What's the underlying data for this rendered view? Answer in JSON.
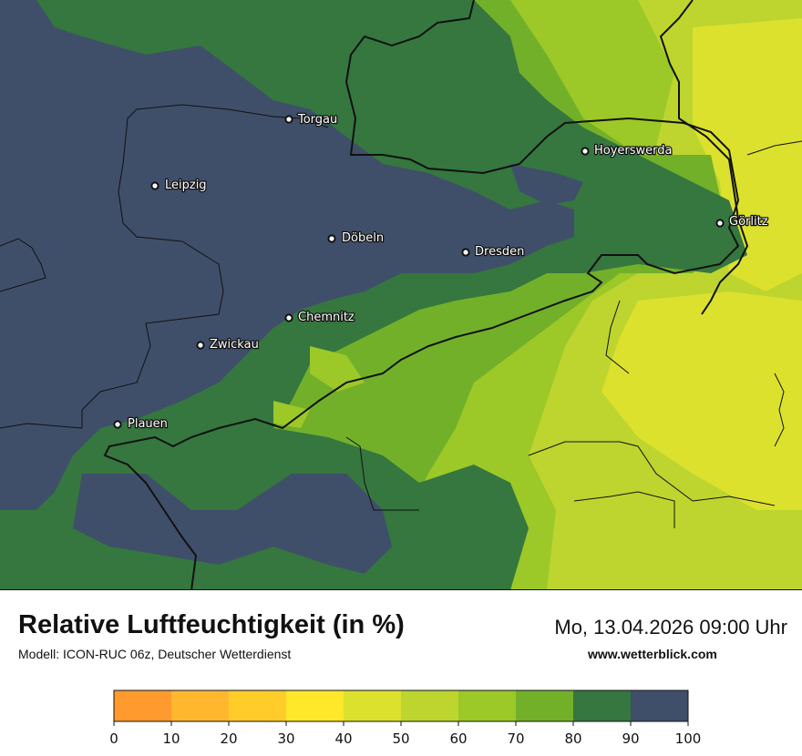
{
  "map": {
    "cities": [
      {
        "name": "Torgau"
      },
      {
        "name": "Hoyerswerda"
      },
      {
        "name": "Leipzig"
      },
      {
        "name": "Görlitz"
      },
      {
        "name": "Döbeln"
      },
      {
        "name": "Dresden"
      },
      {
        "name": "Chemnitz"
      },
      {
        "name": "Zwickau"
      },
      {
        "name": "Plauen"
      }
    ]
  },
  "footer": {
    "title": "Relative Luftfeuchtigkeit (in %)",
    "subtitle": "Modell: ICON-RUC 06z, Deutscher Wetterdienst",
    "datetime": "Mo, 13.04.2026 09:00 Uhr",
    "website": "www.wetterblick.com"
  },
  "legend": {
    "ticks": [
      "0",
      "10",
      "20",
      "30",
      "40",
      "50",
      "60",
      "70",
      "80",
      "90",
      "100"
    ],
    "colors": [
      "#ff9a2e",
      "#ffb82e",
      "#ffcc2a",
      "#ffe82a",
      "#dce12e",
      "#bdd52e",
      "#9cc828",
      "#72b02a",
      "#35773f",
      "#3f4f6a"
    ]
  }
}
